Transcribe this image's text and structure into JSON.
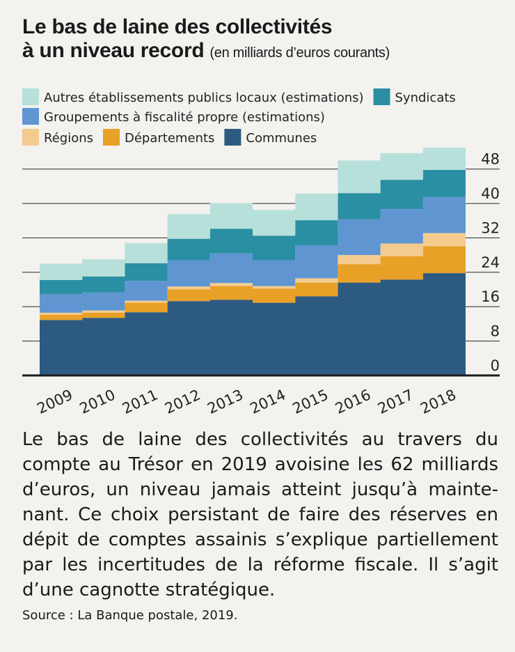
{
  "title": {
    "line1": "Le bas de laine des collectivités",
    "line2": "à un niveau record",
    "subtitle": "(en milliards d’euros courants)"
  },
  "chart_data": {
    "type": "area",
    "stacked": true,
    "categories": [
      "2009",
      "2010",
      "2011",
      "2012",
      "2013",
      "2014",
      "2015",
      "2016",
      "2017",
      "2018"
    ],
    "ylim": [
      0,
      52
    ],
    "yticks": [
      0,
      8,
      16,
      24,
      32,
      40,
      48
    ],
    "y_axis_side": "right",
    "grid": "horizontal",
    "legend_position": "top",
    "series": [
      {
        "name": "Communes",
        "color": "#2d5a80",
        "values": [
          12.9,
          13.4,
          14.7,
          17.3,
          17.6,
          16.9,
          18.4,
          21.6,
          22.3,
          23.8
        ]
      },
      {
        "name": "Départements",
        "color": "#e8a126",
        "values": [
          1.2,
          1.2,
          2.2,
          2.7,
          3.2,
          3.3,
          3.2,
          4.3,
          5.4,
          6.3
        ]
      },
      {
        "name": "Régions",
        "color": "#f4cb8f",
        "values": [
          0.5,
          0.5,
          0.5,
          0.7,
          0.7,
          0.6,
          1.0,
          2.1,
          3.0,
          3.0
        ]
      },
      {
        "name": "Groupement à fiscalité propre (estimations)",
        "color": "#5f96d2",
        "values": [
          4.3,
          4.2,
          4.6,
          6.1,
          6.9,
          6.0,
          7.7,
          8.3,
          8.0,
          8.4
        ]
      },
      {
        "name": "Syndicats",
        "color": "#2a8fa2",
        "values": [
          3.3,
          3.7,
          4.1,
          5.0,
          5.7,
          5.7,
          5.8,
          6.1,
          6.8,
          6.3
        ]
      },
      {
        "name": "Autres établissements publics locaux (estimations)",
        "color": "#b7e0db",
        "values": [
          3.8,
          4.0,
          4.7,
          5.7,
          6.0,
          6.0,
          6.2,
          7.6,
          6.2,
          5.2
        ]
      }
    ]
  },
  "legend": {
    "rows": [
      [
        {
          "label": "Autres établissements publics locaux (estimations)",
          "color": "#b7e0db"
        },
        {
          "label": "Syndicats",
          "color": "#2a8fa2"
        }
      ],
      [
        {
          "label": "Groupements à fiscalité propre (estimations)",
          "color": "#5f96d2"
        }
      ],
      [
        {
          "label": "Régions",
          "color": "#f4cb8f"
        },
        {
          "label": "Départements",
          "color": "#e8a126"
        },
        {
          "label": "Communes",
          "color": "#2d5a80"
        }
      ]
    ]
  },
  "caption": "Le bas de laine des collectivités au travers du compte au Trésor en 2019 avoisine les 62 milliards d’euros, un niveau jamais atteint jusqu’à mainte-nant. Ce choix persistant de faire des réserves en dépit de comptes assainis s’explique partiellement par les incertitudes de la réforme fiscale. Il s’agit d’une cagnotte stratégique.",
  "source": "Source : La Banque postale, 2019."
}
